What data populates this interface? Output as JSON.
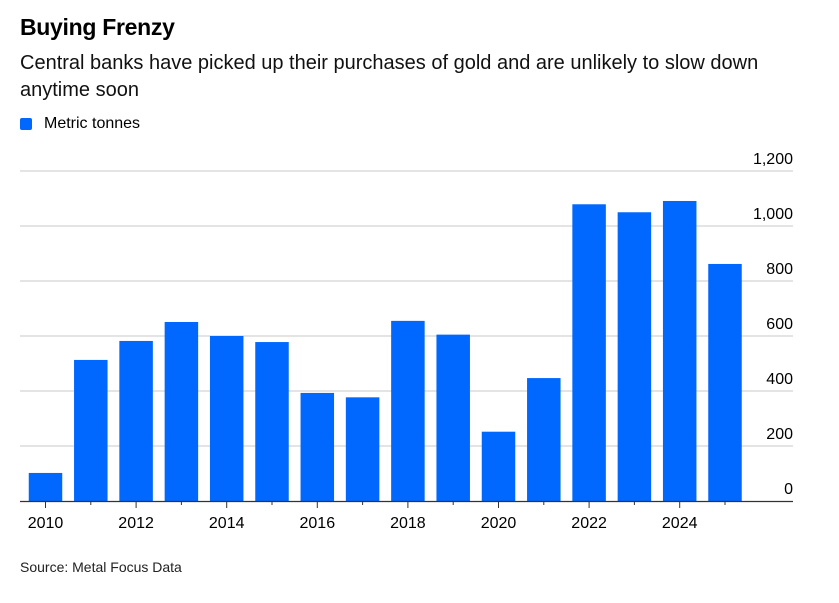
{
  "header": {
    "title": "Buying Frenzy",
    "subtitle": "Central banks have picked up their purchases of gold and are unlikely to slow down anytime soon"
  },
  "legend": {
    "label": "Metric tonnes",
    "color": "#0068ff"
  },
  "footer": {
    "source": "Source: Metal Focus Data"
  },
  "chart_data": {
    "type": "bar",
    "title": "Buying Frenzy",
    "subtitle": "Central banks have picked up their purchases of gold and are unlikely to slow down anytime soon",
    "xlabel": "",
    "ylabel": "Metric tonnes",
    "categories": [
      "2010",
      "2011",
      "2012",
      "2013",
      "2014",
      "2015",
      "2016",
      "2017",
      "2018",
      "2019",
      "2020",
      "2021",
      "2022",
      "2023",
      "2024",
      "2025"
    ],
    "series": [
      {
        "name": "Metric tonnes",
        "color": "#0068ff",
        "values": [
          102,
          513,
          582,
          651,
          600,
          578,
          393,
          377,
          655,
          605,
          252,
          447,
          1079,
          1050,
          1091,
          862
        ]
      }
    ],
    "ylim": [
      0,
      1200
    ],
    "yticks": [
      0,
      200,
      400,
      600,
      800,
      1000,
      1200
    ],
    "ytick_labels": [
      "0",
      "200",
      "400",
      "600",
      "800",
      "1,000",
      "1,200"
    ],
    "xtick_labels": [
      "2010",
      "2012",
      "2014",
      "2016",
      "2018",
      "2020",
      "2022",
      "2024"
    ],
    "y_axis_position": "right",
    "grid": true,
    "legend_position": "top-left"
  }
}
